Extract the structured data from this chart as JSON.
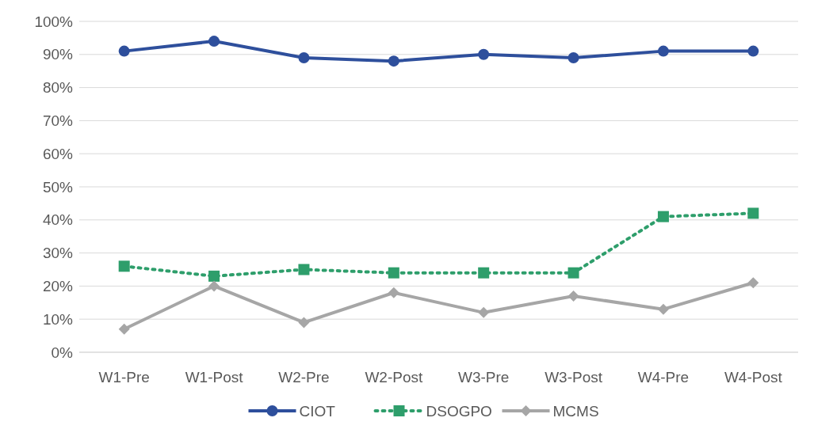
{
  "chart_data": {
    "type": "line",
    "categories": [
      "W1-Pre",
      "W1-Post",
      "W2-Pre",
      "W2-Post",
      "W3-Pre",
      "W3-Post",
      "W4-Pre",
      "W4-Post"
    ],
    "series": [
      {
        "name": "CIOT",
        "color": "#2e4f9c",
        "marker": "circle",
        "line_style": "solid",
        "values": [
          91,
          94,
          89,
          88,
          90,
          89,
          91,
          91
        ]
      },
      {
        "name": "DSOGPO",
        "color": "#2e9e6b",
        "marker": "square",
        "line_style": "dotted",
        "values": [
          26,
          23,
          25,
          24,
          24,
          24,
          41,
          42
        ]
      },
      {
        "name": "MCMS",
        "color": "#a6a6a6",
        "marker": "diamond",
        "line_style": "solid",
        "values": [
          7,
          20,
          9,
          18,
          12,
          17,
          13,
          21
        ]
      }
    ],
    "ylim": [
      0,
      100
    ],
    "yticks": [
      {
        "value": 0,
        "label": "0%"
      },
      {
        "value": 10,
        "label": "10%"
      },
      {
        "value": 20,
        "label": "20%"
      },
      {
        "value": 30,
        "label": "30%"
      },
      {
        "value": 40,
        "label": "40%"
      },
      {
        "value": 50,
        "label": "50%"
      },
      {
        "value": 60,
        "label": "60%"
      },
      {
        "value": 70,
        "label": "70%"
      },
      {
        "value": 80,
        "label": "80%"
      },
      {
        "value": 90,
        "label": "90%"
      },
      {
        "value": 100,
        "label": "100%"
      }
    ],
    "grid": "y",
    "legend": "bottom"
  }
}
